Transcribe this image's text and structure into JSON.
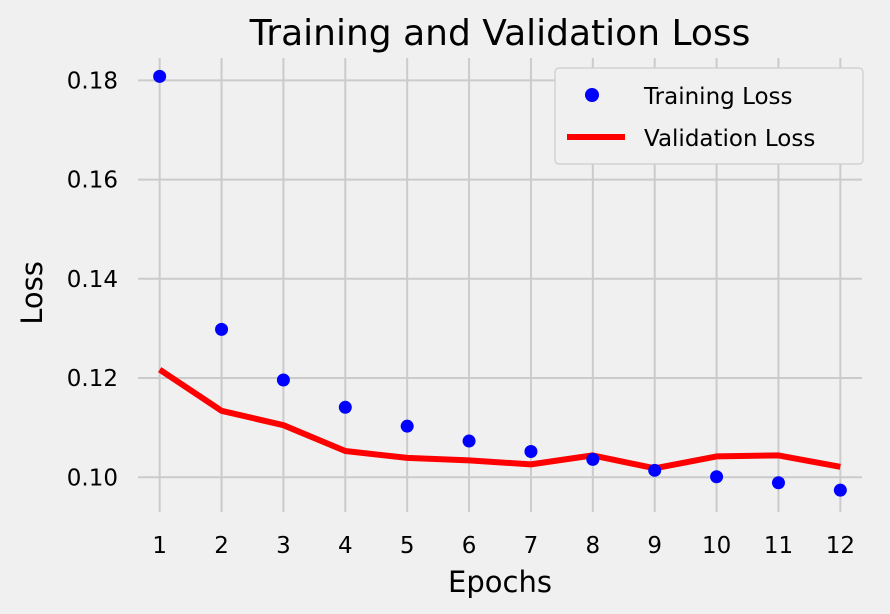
{
  "chart_data": {
    "type": "line",
    "title": "Training and Validation Loss",
    "xlabel": "Epochs",
    "ylabel": "Loss",
    "xlim": [
      0.65,
      12.35
    ],
    "ylim": [
      0.093,
      0.1845
    ],
    "x_ticks": [
      1,
      2,
      3,
      4,
      5,
      6,
      7,
      8,
      9,
      10,
      11,
      12
    ],
    "y_ticks": [
      0.1,
      0.12,
      0.14,
      0.16,
      0.18
    ],
    "y_tick_labels": [
      "0.10",
      "0.12",
      "0.14",
      "0.16",
      "0.18"
    ],
    "grid": true,
    "legend_position": "top-right",
    "x": [
      1,
      2,
      3,
      4,
      5,
      6,
      7,
      8,
      9,
      10,
      11,
      12
    ],
    "series": [
      {
        "name": "Training Loss",
        "style": "points",
        "color": "#0000ff",
        "values": [
          0.1808,
          0.1298,
          0.1196,
          0.1141,
          0.1103,
          0.1073,
          0.1052,
          0.1036,
          0.1014,
          0.1001,
          0.0989,
          0.0974
        ]
      },
      {
        "name": "Validation Loss",
        "style": "line",
        "color": "#ff0000",
        "values": [
          0.1217,
          0.1134,
          0.1105,
          0.1053,
          0.1039,
          0.1034,
          0.1026,
          0.1044,
          0.1018,
          0.1042,
          0.1044,
          0.1021
        ]
      }
    ]
  }
}
